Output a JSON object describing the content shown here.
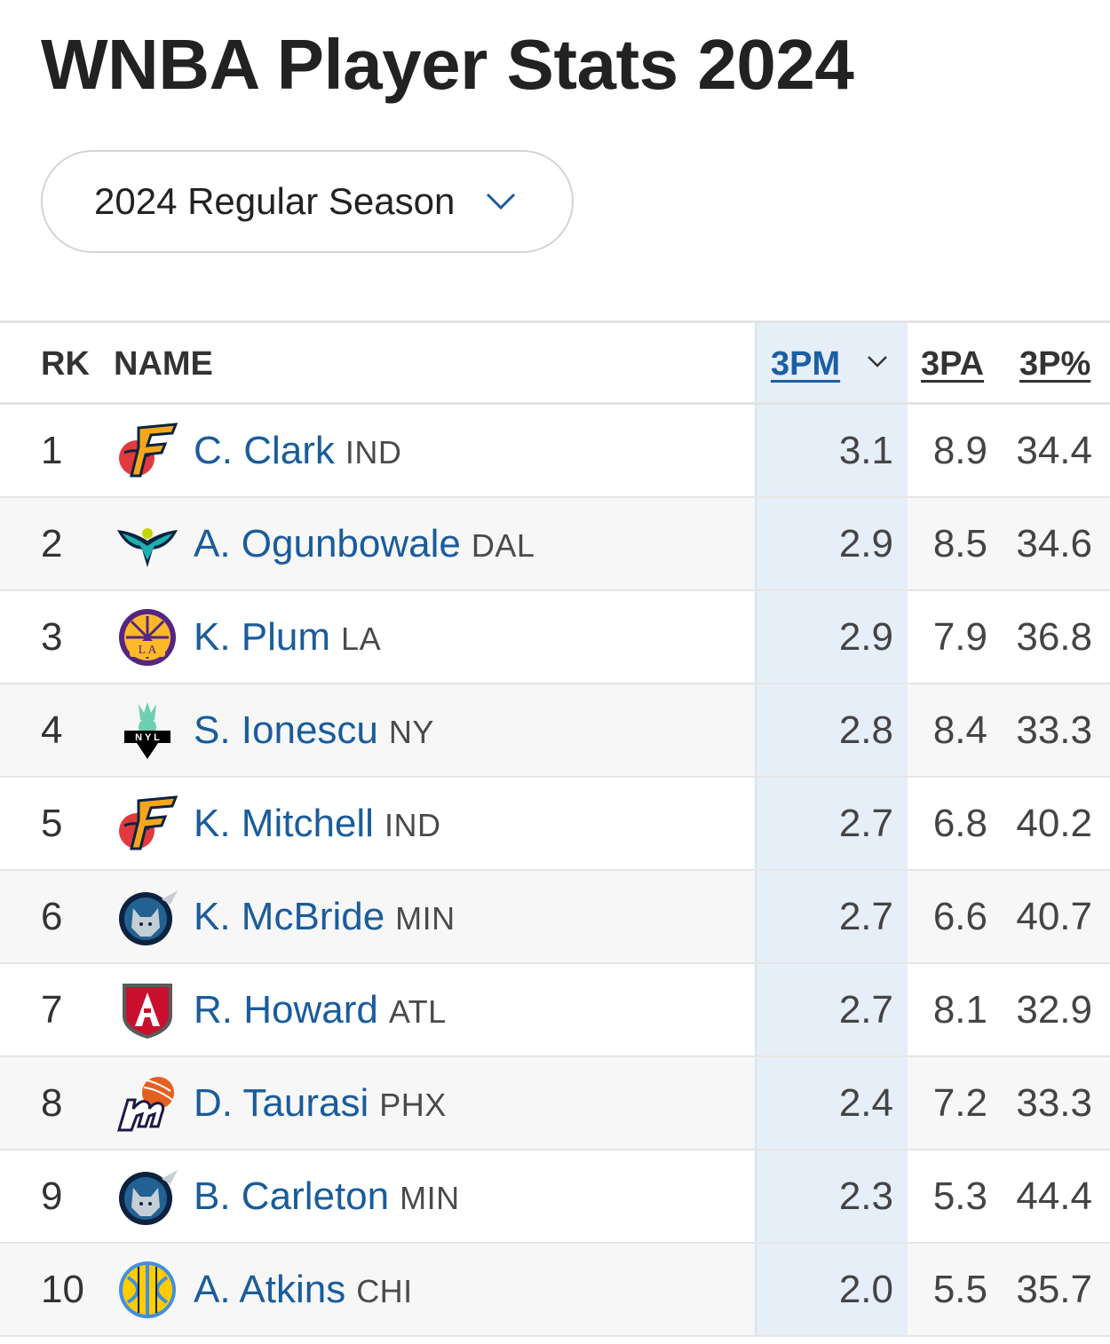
{
  "page": {
    "title": "WNBA Player Stats 2024"
  },
  "season_selector": {
    "label": "2024 Regular Season"
  },
  "table": {
    "columns": {
      "rk": "RK",
      "name": "NAME",
      "3pm": "3PM",
      "3pa": "3PA",
      "3p_pct": "3P%"
    },
    "rows": [
      {
        "rk": "1",
        "name": "C. Clark",
        "team": "IND",
        "pm": "3.1",
        "pa": "8.9",
        "pct": "34.4",
        "logo": "fever-logo"
      },
      {
        "rk": "2",
        "name": "A. Ogunbowale",
        "team": "DAL",
        "pm": "2.9",
        "pa": "8.5",
        "pct": "34.6",
        "logo": "wings-logo"
      },
      {
        "rk": "3",
        "name": "K. Plum",
        "team": "LA",
        "pm": "2.9",
        "pa": "7.9",
        "pct": "36.8",
        "logo": "sparks-logo"
      },
      {
        "rk": "4",
        "name": "S. Ionescu",
        "team": "NY",
        "pm": "2.8",
        "pa": "8.4",
        "pct": "33.3",
        "logo": "liberty-logo"
      },
      {
        "rk": "5",
        "name": "K. Mitchell",
        "team": "IND",
        "pm": "2.7",
        "pa": "6.8",
        "pct": "40.2",
        "logo": "fever-logo"
      },
      {
        "rk": "6",
        "name": "K. McBride",
        "team": "MIN",
        "pm": "2.7",
        "pa": "6.6",
        "pct": "40.7",
        "logo": "lynx-logo"
      },
      {
        "rk": "7",
        "name": "R. Howard",
        "team": "ATL",
        "pm": "2.7",
        "pa": "8.1",
        "pct": "32.9",
        "logo": "dream-logo"
      },
      {
        "rk": "8",
        "name": "D. Taurasi",
        "team": "PHX",
        "pm": "2.4",
        "pa": "7.2",
        "pct": "33.3",
        "logo": "mercury-logo"
      },
      {
        "rk": "9",
        "name": "B. Carleton",
        "team": "MIN",
        "pm": "2.3",
        "pa": "5.3",
        "pct": "44.4",
        "logo": "lynx-logo"
      },
      {
        "rk": "10",
        "name": "A. Atkins",
        "team": "CHI",
        "pm": "2.0",
        "pa": "5.5",
        "pct": "35.7",
        "logo": "sky-logo"
      }
    ]
  },
  "colors": {
    "link_blue": "#1a5c9c",
    "sort_highlight": "#e6eef8",
    "alt_row": "#f7f7f7"
  }
}
